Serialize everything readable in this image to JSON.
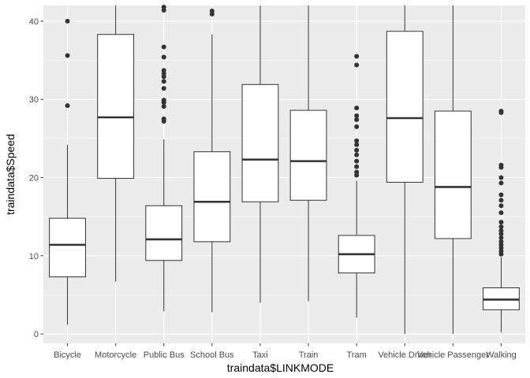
{
  "chart_data": {
    "type": "boxplot",
    "title": "",
    "xlabel": "traindata$LINKMODE",
    "ylabel": "traindata$Speed",
    "ylim": [
      -1.2,
      42
    ],
    "yticks": [
      0,
      10,
      20,
      30,
      40
    ],
    "grid": true,
    "legend": "none",
    "colors": {
      "panel": "#ebebeb",
      "grid_major": "#ffffff",
      "box_fill": "#ffffff",
      "box_stroke": "#333333",
      "outlier": "#333333",
      "tick_text": "#4d4d4d"
    },
    "categories": [
      "Bicycle",
      "Motorcycle",
      "Public Bus",
      "School Bus",
      "Taxi",
      "Train",
      "Tram",
      "Vehicle Driver",
      "Vehicle Passenger",
      "Walking"
    ],
    "boxes": [
      {
        "category": "Bicycle",
        "whisker_low": 1.2,
        "q1": 7.3,
        "median": 11.4,
        "q3": 14.8,
        "whisker_high": 24.2,
        "outliers": [
          29.2,
          35.6,
          40.0
        ]
      },
      {
        "category": "Motorcycle",
        "whisker_low": 6.7,
        "q1": 19.9,
        "median": 27.7,
        "q3": 38.3,
        "whisker_high": 42.0,
        "outliers": []
      },
      {
        "category": "Public Bus",
        "whisker_low": 2.9,
        "q1": 9.4,
        "median": 12.1,
        "q3": 16.4,
        "whisker_high": 24.9,
        "outliers": [
          27.2,
          27.5,
          29.1,
          29.6,
          29.9,
          31.4,
          32.3,
          32.9,
          33.3,
          33.7,
          35.4,
          36.7,
          41.4,
          41.8
        ]
      },
      {
        "category": "School Bus",
        "whisker_low": 2.8,
        "q1": 11.8,
        "median": 16.9,
        "q3": 23.3,
        "whisker_high": 38.3,
        "outliers": [
          40.9,
          41.3
        ]
      },
      {
        "category": "Taxi",
        "whisker_low": 4.0,
        "q1": 16.9,
        "median": 22.3,
        "q3": 31.9,
        "whisker_high": 42.0,
        "outliers": []
      },
      {
        "category": "Train",
        "whisker_low": 4.2,
        "q1": 17.1,
        "median": 22.1,
        "q3": 28.6,
        "whisker_high": 42.0,
        "outliers": []
      },
      {
        "category": "Tram",
        "whisker_low": 2.1,
        "q1": 7.8,
        "median": 10.2,
        "q3": 12.6,
        "whisker_high": 19.6,
        "outliers": [
          20.3,
          20.7,
          21.4,
          22.1,
          22.9,
          23.5,
          24.2,
          24.7,
          26.5,
          27.4,
          27.9,
          28.9,
          34.4,
          35.5
        ]
      },
      {
        "category": "Vehicle Driver",
        "whisker_low": 0.0,
        "q1": 19.4,
        "median": 27.6,
        "q3": 38.7,
        "whisker_high": 42.0,
        "outliers": []
      },
      {
        "category": "Vehicle Passenger",
        "whisker_low": 0.0,
        "q1": 12.2,
        "median": 18.8,
        "q3": 28.5,
        "whisker_high": 42.0,
        "outliers": []
      },
      {
        "category": "Walking",
        "whisker_low": 0.2,
        "q1": 3.1,
        "median": 4.4,
        "q3": 5.9,
        "whisker_high": 9.8,
        "outliers": [
          10.2,
          10.6,
          11.0,
          11.4,
          11.8,
          12.3,
          12.8,
          13.2,
          13.7,
          14.3,
          15.5,
          16.4,
          17.1,
          17.8,
          19.3,
          20.0,
          21.3,
          21.6,
          28.3,
          28.5
        ]
      }
    ]
  }
}
